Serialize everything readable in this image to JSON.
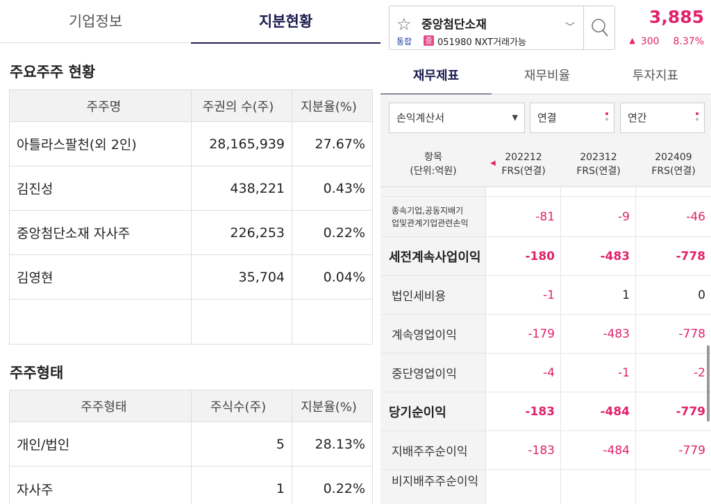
{
  "left_tabs": {
    "company_info": "기업정보",
    "shareholding": "지분현황"
  },
  "major_holders": {
    "title": "주요주주 현황",
    "headers": [
      "주주명",
      "주권의 수(주)",
      "지분율(%)"
    ],
    "rows": [
      [
        "아틀라스팔천(외 2인)",
        "28,165,939",
        "27.67%"
      ],
      [
        "김진성",
        "438,221",
        "0.43%"
      ],
      [
        "중앙첨단소재 자사주",
        "226,253",
        "0.22%"
      ],
      [
        "김영현",
        "35,704",
        "0.04%"
      ],
      [
        "",
        "",
        ""
      ]
    ]
  },
  "holder_types": {
    "title": "주주형태",
    "headers": [
      "주주형태",
      "주식수(주)",
      "지분율(%)"
    ],
    "rows": [
      [
        "개인/법인",
        "5",
        "28.13%"
      ],
      [
        "자사주",
        "1",
        "0.22%"
      ]
    ]
  },
  "stock": {
    "name": "중앙첨단소재",
    "market_badge": "통합",
    "margin_badge": "증",
    "code_line": "051980 NXT거래가능",
    "price": "3,885",
    "change": "300",
    "change_pct": "8.37%",
    "up_color": "#e0226a"
  },
  "right_tabs": {
    "fin_statement": "재무제표",
    "fin_ratio": "재무비율",
    "invest_index": "투자지표"
  },
  "filters": {
    "statement": "손익계산서",
    "consolidation": "연결",
    "period": "연간"
  },
  "fin_table": {
    "item_header_1": "항목",
    "item_header_2": "(단위:억원)",
    "columns": [
      {
        "period": "202212",
        "basis": "FRS(연결)"
      },
      {
        "period": "202312",
        "basis": "FRS(연결)"
      },
      {
        "period": "202409",
        "basis": "FRS(연결)"
      }
    ],
    "rows": [
      {
        "label_1": "종속기업,공동지배기",
        "label_2": "업및관계기업관련손익",
        "values": [
          "-81",
          "-9",
          "-46"
        ]
      },
      {
        "label": "세전계속사업이익",
        "values": [
          "-180",
          "-483",
          "-778"
        ]
      },
      {
        "label": "법인세비용",
        "values": [
          "-1",
          "1",
          "0"
        ]
      },
      {
        "label": "계속영업이익",
        "values": [
          "-179",
          "-483",
          "-778"
        ]
      },
      {
        "label": "중단영업이익",
        "values": [
          "-4",
          "-1",
          "-2"
        ]
      },
      {
        "label": "당기순이익",
        "values": [
          "-183",
          "-484",
          "-779"
        ]
      },
      {
        "label": "지배주주순이익",
        "values": [
          "-183",
          "-484",
          "-779"
        ]
      },
      {
        "label": "비지배주주순이익",
        "values": [
          "",
          "",
          ""
        ]
      }
    ]
  }
}
